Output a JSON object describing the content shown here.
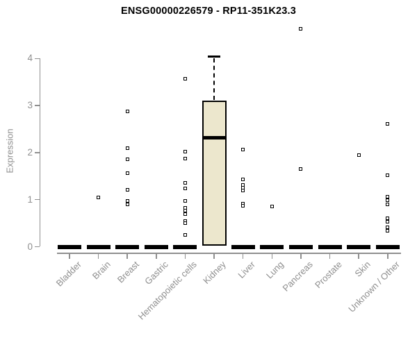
{
  "chart_data": {
    "type": "boxplot",
    "title": "ENSG00000226579 - RP11-351K23.3",
    "ylabel": "Expression",
    "xlabel": "",
    "ylim": [
      0,
      4
    ],
    "yticks": [
      0,
      1,
      2,
      3,
      4
    ],
    "grid": false,
    "legend": "none",
    "box_fill": "#ece7cd",
    "box_stroke": "#000000",
    "axis_color": "#8f8f8f",
    "categories": [
      "Bladder",
      "Brain",
      "Breast",
      "Gastric",
      "Hematopoietic cells",
      "Kidney",
      "Liver",
      "Lung",
      "Pancreas",
      "Prostate",
      "Skin",
      "Unknown / Other"
    ],
    "groups": [
      {
        "label": "Bladder",
        "median": 0,
        "q1": 0,
        "q3": 0,
        "whisker_high": 0,
        "outliers": []
      },
      {
        "label": "Brain",
        "median": 0,
        "q1": 0,
        "q3": 0,
        "whisker_high": 0,
        "outliers": [
          1.05
        ]
      },
      {
        "label": "Breast",
        "median": 0,
        "q1": 0,
        "q3": 0,
        "whisker_high": 0,
        "outliers": [
          2.88,
          2.1,
          1.86,
          1.57,
          1.21,
          0.98,
          0.9
        ]
      },
      {
        "label": "Gastric",
        "median": 0,
        "q1": 0,
        "q3": 0,
        "whisker_high": 0,
        "outliers": []
      },
      {
        "label": "Hematopoietic cells",
        "median": 0,
        "q1": 0,
        "q3": 0,
        "whisker_high": 0,
        "outliers": [
          3.57,
          2.02,
          1.88,
          1.36,
          1.24,
          0.98,
          0.83,
          0.77,
          0.7,
          0.55,
          0.5,
          0.25
        ]
      },
      {
        "label": "Kidney",
        "median": 2.31,
        "q1": 0.02,
        "q3": 3.11,
        "whisker_high": 4.04,
        "outliers": []
      },
      {
        "label": "Liver",
        "median": 0,
        "q1": 0,
        "q3": 0,
        "whisker_high": 0,
        "outliers": [
          2.06,
          1.43,
          1.31,
          1.25,
          1.19,
          0.92,
          0.87
        ]
      },
      {
        "label": "Lung",
        "median": 0,
        "q1": 0,
        "q3": 0,
        "whisker_high": 0,
        "outliers": [
          0.86
        ]
      },
      {
        "label": "Pancreas",
        "median": 0,
        "q1": 0,
        "q3": 0,
        "whisker_high": 0,
        "outliers": [
          4.63,
          1.65
        ]
      },
      {
        "label": "Prostate",
        "median": 0,
        "q1": 0,
        "q3": 0,
        "whisker_high": 0,
        "outliers": []
      },
      {
        "label": "Skin",
        "median": 0,
        "q1": 0,
        "q3": 0,
        "whisker_high": 0,
        "outliers": [
          1.94
        ]
      },
      {
        "label": "Unknown / Other",
        "median": 0,
        "q1": 0,
        "q3": 0,
        "whisker_high": 0,
        "outliers": [
          2.61,
          1.52,
          1.06,
          0.99,
          0.9,
          0.6,
          0.53,
          0.42,
          0.34
        ]
      }
    ]
  }
}
